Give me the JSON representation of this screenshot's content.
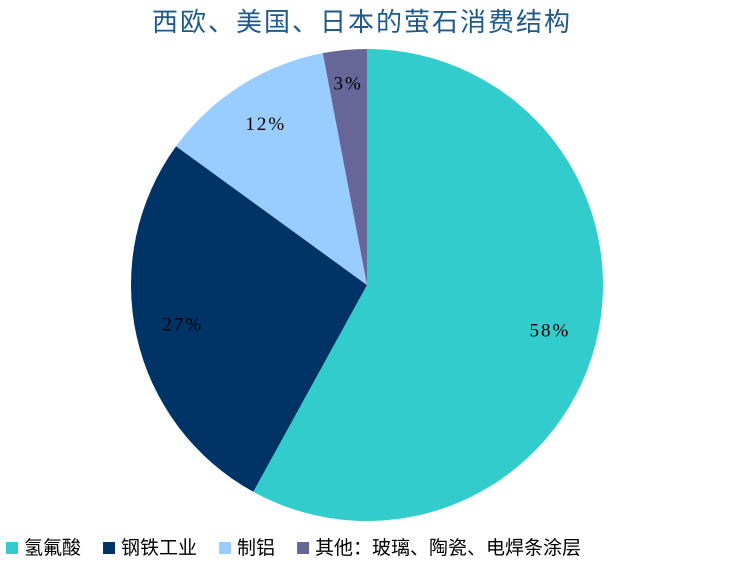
{
  "chart_data": {
    "type": "pie",
    "title": "西欧、美国、日本的萤石消费结构",
    "categories": [
      "氢氟酸",
      "钢铁工业",
      "制铝",
      "其他：玻璃、陶瓷、电焊条涂层"
    ],
    "values": [
      58,
      27,
      12,
      3
    ],
    "value_labels": [
      "58%",
      "27%",
      "12%",
      "3%"
    ],
    "colors": [
      "#33cccc",
      "#003366",
      "#99ccff",
      "#666699"
    ],
    "legend": "bottom"
  }
}
